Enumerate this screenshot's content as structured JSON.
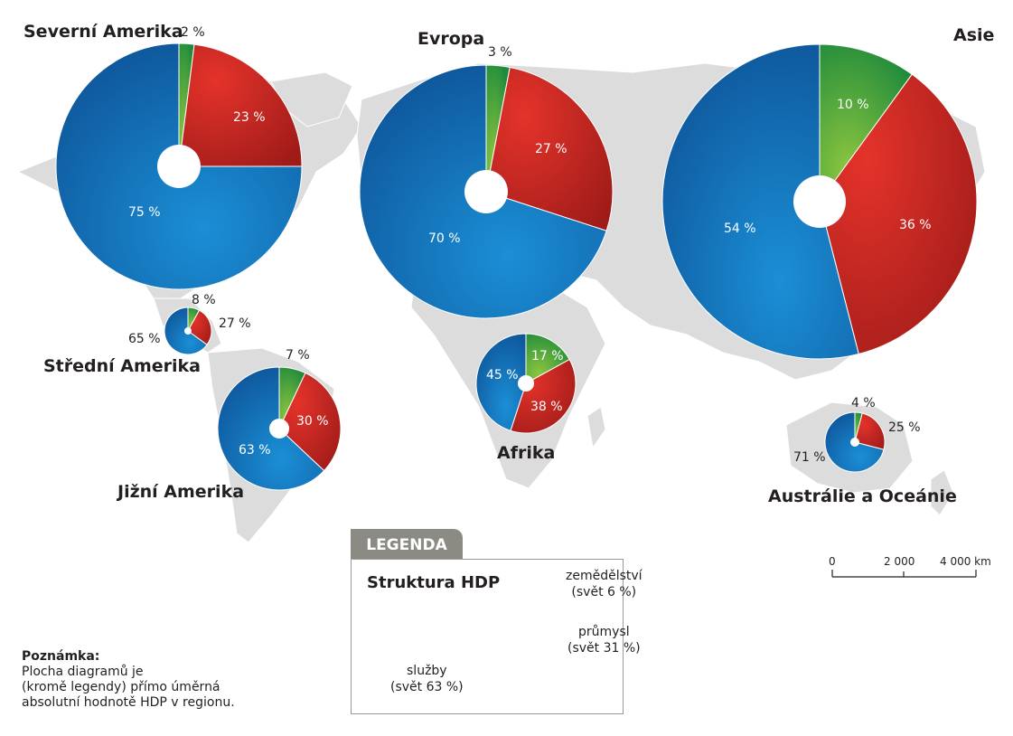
{
  "colors": {
    "agriculture": "#2e9a3a",
    "industry": "#c4231f",
    "services": "#1a6fb3",
    "land": "#dcdcdc",
    "legend_tab": "#8b8a83"
  },
  "chart_data": {
    "type": "pie",
    "series_order": [
      "zemědělství",
      "průmysl",
      "služby"
    ],
    "regions": [
      {
        "name": "Severní Amerika",
        "values": [
          2,
          23,
          75
        ],
        "labels": [
          "2 %",
          "23 %",
          "75 %"
        ]
      },
      {
        "name": "Evropa",
        "values": [
          3,
          27,
          70
        ],
        "labels": [
          "3 %",
          "27 %",
          "70 %"
        ]
      },
      {
        "name": "Asie",
        "values": [
          10,
          36,
          54
        ],
        "labels": [
          "10 %",
          "36 %",
          "54 %"
        ]
      },
      {
        "name": "Střední Amerika",
        "values": [
          8,
          27,
          65
        ],
        "labels": [
          "8 %",
          "27 %",
          "65 %"
        ]
      },
      {
        "name": "Jižní Amerika",
        "values": [
          7,
          30,
          63
        ],
        "labels": [
          "7 %",
          "30 %",
          "63 %"
        ]
      },
      {
        "name": "Afrika",
        "values": [
          17,
          38,
          45
        ],
        "labels": [
          "17 %",
          "38 %",
          "45 %"
        ]
      },
      {
        "name": "Austrálie a Oceánie",
        "values": [
          4,
          25,
          71
        ],
        "labels": [
          "4 %",
          "25 %",
          "71 %"
        ]
      }
    ],
    "legend_pie": {
      "values": [
        6,
        31,
        63
      ]
    }
  },
  "legend": {
    "tab": "LEGENDA",
    "title": "Struktura HDP",
    "agri_line1": "zemědělství",
    "agri_line2": "(svět 6 %)",
    "ind_line1": "průmysl",
    "ind_line2": "(svět 31 %)",
    "serv_line1": "služby",
    "serv_line2": "(svět 63 %)"
  },
  "scale": {
    "t0": "0",
    "t1": "2 000",
    "t2": "4 000 km"
  },
  "note": {
    "heading": "Poznámka:",
    "line1": "Plocha diagramů je",
    "line2": "(kromě legendy) přímo úměrná",
    "line3": "absolutní hodnotě HDP v regionu."
  }
}
